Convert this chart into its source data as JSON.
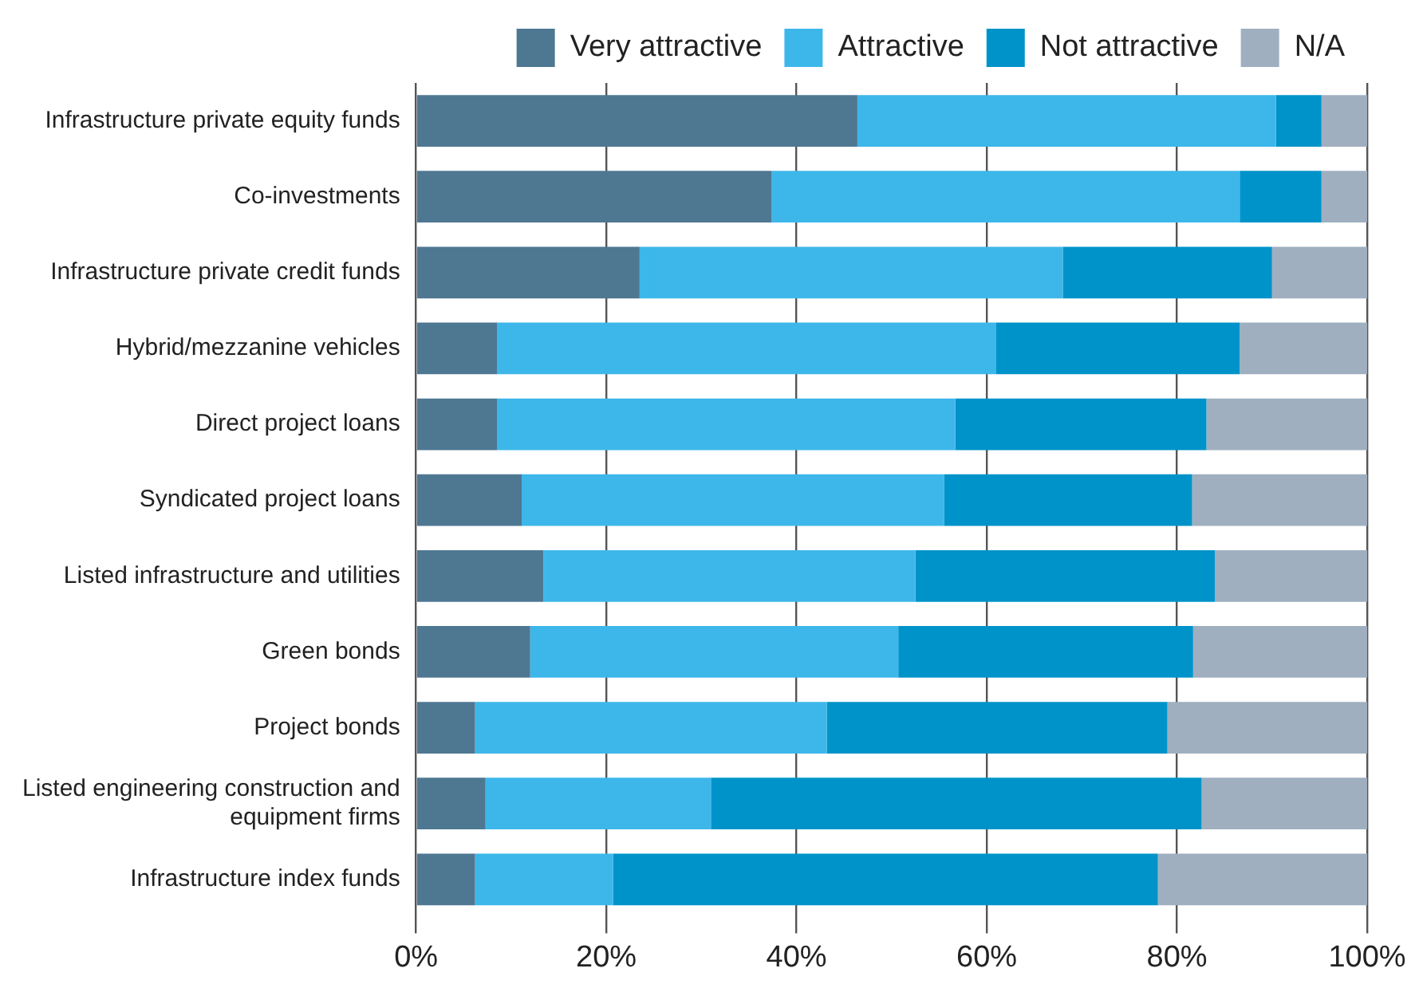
{
  "chart_data": {
    "type": "bar",
    "orientation": "horizontal",
    "stacked": true,
    "categories": [
      "Infrastructure private equity funds",
      "Co-investments",
      "Infrastructure private credit funds",
      "Hybrid/mezzanine vehicles",
      "Direct project loans",
      "Syndicated project loans",
      "Listed infrastructure and utilities",
      "Green bonds",
      "Project bonds",
      "Listed engineering construction and equipment firms",
      "Infrastructure index funds"
    ],
    "series": [
      {
        "name": "Very attractive",
        "color": "#4e7792",
        "values": [
          46.4,
          37.4,
          23.5,
          8.5,
          8.5,
          11.1,
          13.4,
          12.0,
          6.2,
          7.3,
          6.2
        ]
      },
      {
        "name": "Attractive",
        "color": "#3db7ea",
        "values": [
          44.0,
          49.2,
          44.5,
          52.5,
          48.2,
          44.4,
          39.1,
          38.7,
          37.0,
          23.7,
          14.5
        ]
      },
      {
        "name": "Not attractive",
        "color": "#0093c9",
        "values": [
          4.8,
          8.6,
          22.0,
          25.6,
          26.4,
          26.1,
          31.5,
          31.0,
          35.8,
          51.6,
          57.3
        ]
      },
      {
        "name": "N/A",
        "color": "#9fafbf",
        "values": [
          4.8,
          4.8,
          10.0,
          13.4,
          16.9,
          18.4,
          16.0,
          18.3,
          21.0,
          17.4,
          22.0
        ]
      }
    ],
    "xlim": [
      0,
      100
    ],
    "xticks": [
      {
        "value": 0,
        "label": "0%"
      },
      {
        "value": 20,
        "label": "20%"
      },
      {
        "value": 40,
        "label": "40%"
      },
      {
        "value": 60,
        "label": "60%"
      },
      {
        "value": 80,
        "label": "80%"
      },
      {
        "value": 100,
        "label": "100%"
      }
    ],
    "grid": "x",
    "legend": "top right"
  }
}
